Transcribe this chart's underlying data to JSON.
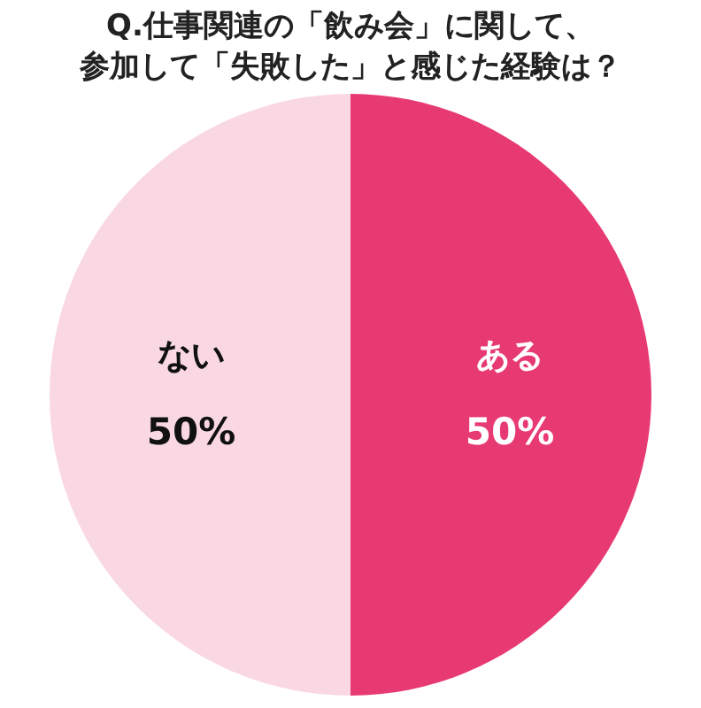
{
  "chart_data": {
    "type": "pie",
    "title": "Q.仕事関連の「飲み会」に関して、",
    "subtitle": "参加して「失敗した」と感じた経験は？",
    "categories": [
      "ある",
      "ない"
    ],
    "values": [
      50,
      50
    ],
    "value_labels": [
      "50%",
      "50%"
    ],
    "colors": [
      "#e83a72",
      "#fad8e3"
    ],
    "legend": false
  }
}
